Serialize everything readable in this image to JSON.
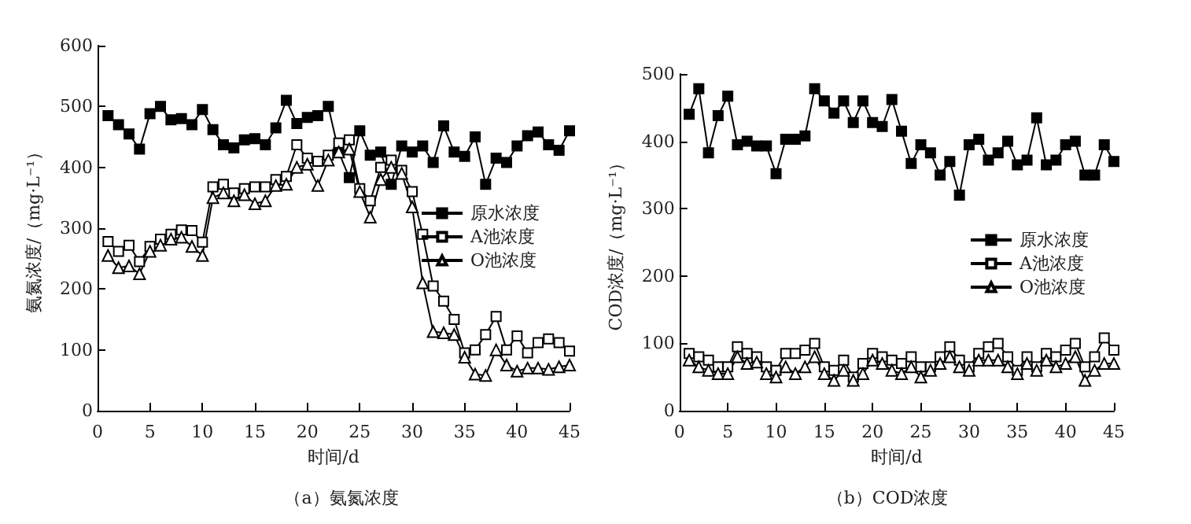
{
  "chart_data": [
    {
      "type": "line",
      "title": "（a）氨氮浓度",
      "xlabel": "时间/d",
      "ylabel": "氨氮浓度/（mg·L⁻¹）",
      "x": [
        1,
        2,
        3,
        4,
        5,
        6,
        7,
        8,
        9,
        10,
        11,
        12,
        13,
        14,
        15,
        16,
        17,
        18,
        19,
        20,
        21,
        22,
        23,
        24,
        25,
        26,
        27,
        28,
        29,
        30,
        31,
        32,
        33,
        34,
        35,
        36,
        37,
        38,
        39,
        40,
        41,
        42,
        43,
        44,
        45
      ],
      "series": [
        {
          "name": "原水浓度",
          "color": "#000000",
          "marker": "square",
          "values": [
            485,
            470,
            455,
            430,
            488,
            500,
            478,
            480,
            470,
            495,
            462,
            437,
            432,
            445,
            447,
            437,
            465,
            510,
            472,
            482,
            485,
            500,
            425,
            383,
            460,
            420,
            425,
            372,
            435,
            425,
            435,
            408,
            468,
            425,
            418,
            450,
            372,
            415,
            408,
            435,
            452,
            458,
            437,
            428,
            460
          ]
        },
        {
          "name": "A池浓度",
          "color": "#000000",
          "marker": "square",
          "values": [
            278,
            262,
            272,
            245,
            270,
            282,
            290,
            297,
            296,
            277,
            368,
            372,
            358,
            365,
            368,
            368,
            380,
            385,
            437,
            415,
            410,
            420,
            440,
            445,
            365,
            345,
            400,
            412,
            395,
            360,
            290,
            205,
            180,
            150,
            95,
            100,
            125,
            155,
            100,
            123,
            95,
            112,
            118,
            112,
            98
          ]
        },
        {
          "name": "O池浓度",
          "color": "#000000",
          "marker": "triangle",
          "values": [
            255,
            235,
            238,
            225,
            262,
            272,
            282,
            285,
            270,
            255,
            350,
            358,
            345,
            355,
            340,
            345,
            370,
            372,
            400,
            405,
            370,
            412,
            425,
            430,
            360,
            318,
            380,
            400,
            390,
            335,
            210,
            130,
            128,
            125,
            88,
            60,
            58,
            100,
            75,
            65,
            70,
            70,
            68,
            72,
            75
          ]
        }
      ],
      "xlim": [
        0,
        45
      ],
      "xticks": [
        0,
        5,
        10,
        15,
        20,
        25,
        30,
        35,
        40,
        45
      ],
      "ylim": [
        0,
        600
      ],
      "yticks": [
        0,
        100,
        200,
        300,
        400,
        500,
        600
      ],
      "grid": false,
      "legend": "right",
      "line_style": "solid"
    },
    {
      "type": "line",
      "title": "（b）COD浓度",
      "xlabel": "时间/d",
      "ylabel": "COD浓度/（mg·L⁻¹）",
      "x": [
        1,
        2,
        3,
        4,
        5,
        6,
        7,
        8,
        9,
        10,
        11,
        12,
        13,
        14,
        15,
        16,
        17,
        18,
        19,
        20,
        21,
        22,
        23,
        24,
        25,
        26,
        27,
        28,
        29,
        30,
        31,
        32,
        33,
        34,
        35,
        36,
        37,
        38,
        39,
        40,
        41,
        42,
        43,
        44,
        45
      ],
      "series": [
        {
          "name": "原水浓度",
          "color": "#000000",
          "marker": "square",
          "values": [
            440,
            478,
            383,
            438,
            467,
            395,
            400,
            393,
            393,
            352,
            403,
            403,
            408,
            478,
            460,
            442,
            460,
            428,
            460,
            428,
            422,
            462,
            415,
            367,
            395,
            383,
            350,
            370,
            320,
            395,
            403,
            372,
            383,
            400,
            365,
            372,
            435,
            365,
            372,
            395,
            400,
            350,
            350,
            395,
            370
          ]
        },
        {
          "name": "A池浓度",
          "color": "#000000",
          "marker": "square",
          "values": [
            85,
            80,
            75,
            65,
            65,
            95,
            85,
            80,
            65,
            60,
            85,
            85,
            90,
            100,
            65,
            60,
            75,
            50,
            70,
            85,
            80,
            75,
            70,
            80,
            65,
            65,
            80,
            95,
            75,
            65,
            85,
            95,
            100,
            80,
            60,
            80,
            65,
            85,
            80,
            90,
            100,
            65,
            80,
            108,
            90
          ]
        },
        {
          "name": "O池浓度",
          "color": "#000000",
          "marker": "triangle",
          "values": [
            75,
            65,
            60,
            55,
            55,
            80,
            70,
            72,
            55,
            50,
            65,
            55,
            65,
            80,
            55,
            45,
            60,
            45,
            55,
            75,
            70,
            60,
            55,
            65,
            50,
            60,
            70,
            80,
            65,
            60,
            75,
            75,
            75,
            65,
            55,
            70,
            60,
            75,
            65,
            70,
            80,
            45,
            60,
            70,
            70
          ]
        }
      ],
      "xlim": [
        0,
        45
      ],
      "xticks": [
        0,
        5,
        10,
        15,
        20,
        25,
        30,
        35,
        40,
        45
      ],
      "ylim": [
        0,
        500
      ],
      "yticks": [
        0,
        100,
        200,
        300,
        400,
        500
      ],
      "grid": false,
      "legend": "right",
      "line_style": "solid"
    }
  ]
}
